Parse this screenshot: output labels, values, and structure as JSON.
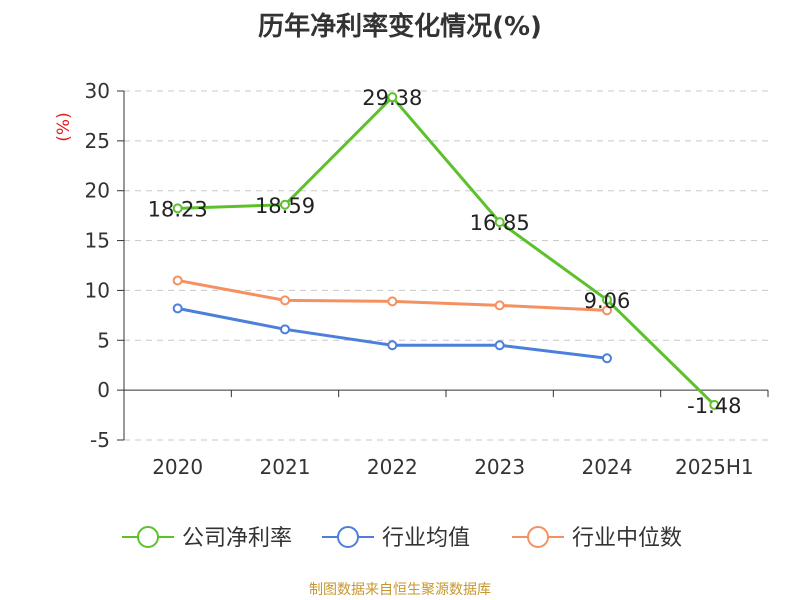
{
  "chart_data": {
    "type": "line",
    "title": "历年净利率变化情况(%)",
    "ylabel": "(%)",
    "categories": [
      "2020",
      "2021",
      "2022",
      "2023",
      "2024",
      "2025H1"
    ],
    "ylim": [
      -5,
      30
    ],
    "yticks": [
      30,
      25,
      20,
      15,
      10,
      5,
      0,
      -5
    ],
    "grid": true,
    "legend_position": "bottom",
    "series": [
      {
        "name": "公司净利率",
        "color": "#5cc12b",
        "values": [
          18.23,
          18.59,
          29.38,
          16.85,
          9.06,
          -1.48
        ],
        "labels": [
          "18.23",
          "18.59",
          "29.38",
          "16.85",
          "9.06",
          "-1.48"
        ]
      },
      {
        "name": "行业均值",
        "color": "#4c7fdb",
        "values": [
          8.2,
          6.1,
          4.5,
          4.5,
          3.2,
          null
        ]
      },
      {
        "name": "行业中位数",
        "color": "#f59160",
        "values": [
          11.0,
          9.0,
          8.9,
          8.5,
          8.0,
          null
        ]
      }
    ]
  },
  "source": "制图数据来自恒生聚源数据库"
}
